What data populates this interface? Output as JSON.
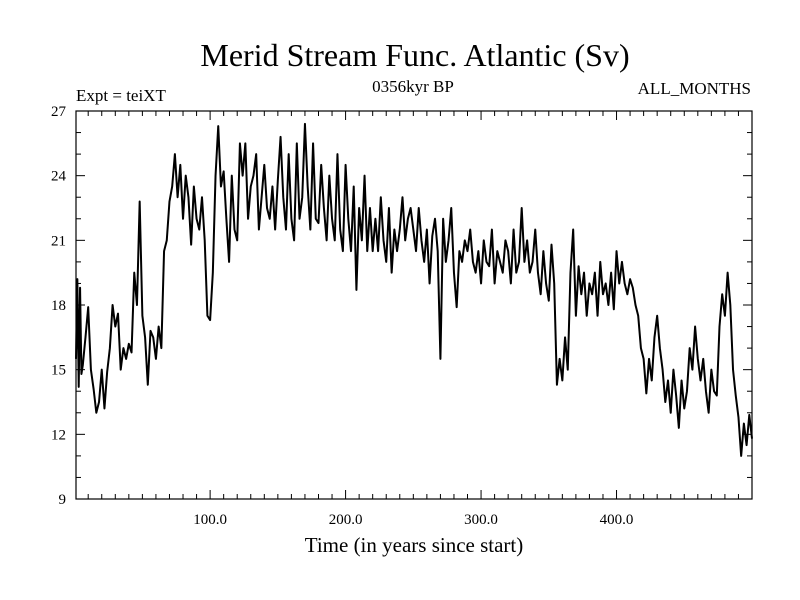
{
  "chart_data": {
    "type": "line",
    "title": "Merid Stream Func. Atlantic (Sv)",
    "subtitle_left": "Expt = teiXT",
    "subtitle_center": "0356kyr BP",
    "subtitle_right": "ALL_MONTHS",
    "xlabel": "Time (in years since start)",
    "ylabel": "",
    "xlim": [
      1,
      500
    ],
    "ylim": [
      9,
      27
    ],
    "x_tick_values": [
      100,
      200,
      300,
      400
    ],
    "x_tick_labels": [
      "100.0",
      "200.0",
      "300.0",
      "400.0"
    ],
    "y_tick_values": [
      9,
      12,
      15,
      18,
      21,
      24,
      27
    ],
    "y_tick_labels": [
      "9",
      "12",
      "15",
      "18",
      "21",
      "24",
      "27"
    ],
    "series": [
      {
        "name": "Merid Stream Func. Atlantic",
        "x": [
          1,
          2,
          3,
          4,
          5,
          6,
          8,
          10,
          12,
          14,
          16,
          18,
          20,
          22,
          24,
          26,
          28,
          30,
          32,
          34,
          36,
          38,
          40,
          42,
          44,
          46,
          48,
          50,
          52,
          54,
          56,
          58,
          60,
          62,
          64,
          66,
          68,
          70,
          72,
          74,
          76,
          78,
          80,
          82,
          84,
          86,
          88,
          90,
          92,
          94,
          96,
          98,
          100,
          102,
          104,
          106,
          108,
          110,
          112,
          114,
          116,
          118,
          120,
          122,
          124,
          126,
          128,
          130,
          132,
          134,
          136,
          138,
          140,
          142,
          144,
          146,
          148,
          150,
          152,
          154,
          156,
          158,
          160,
          162,
          164,
          166,
          168,
          170,
          172,
          174,
          176,
          178,
          180,
          182,
          184,
          186,
          188,
          190,
          192,
          194,
          196,
          198,
          200,
          202,
          204,
          206,
          208,
          210,
          212,
          214,
          216,
          218,
          220,
          222,
          224,
          226,
          228,
          230,
          232,
          234,
          236,
          238,
          240,
          242,
          244,
          246,
          248,
          250,
          252,
          254,
          256,
          258,
          260,
          262,
          264,
          266,
          268,
          270,
          272,
          274,
          276,
          278,
          280,
          282,
          284,
          286,
          288,
          290,
          292,
          294,
          296,
          298,
          300,
          302,
          304,
          306,
          308,
          310,
          312,
          314,
          316,
          318,
          320,
          322,
          324,
          326,
          328,
          330,
          332,
          334,
          336,
          338,
          340,
          342,
          344,
          346,
          348,
          350,
          352,
          354,
          356,
          358,
          360,
          362,
          364,
          366,
          368,
          370,
          372,
          374,
          376,
          378,
          380,
          382,
          384,
          386,
          388,
          390,
          392,
          394,
          396,
          398,
          400,
          402,
          404,
          406,
          408,
          410,
          412,
          414,
          416,
          418,
          420,
          422,
          424,
          426,
          428,
          430,
          432,
          434,
          436,
          438,
          440,
          442,
          444,
          446,
          448,
          450,
          452,
          454,
          456,
          458,
          460,
          462,
          464,
          466,
          468,
          470,
          472,
          474,
          476,
          478,
          480,
          482,
          484,
          486,
          488,
          490,
          492,
          494,
          496,
          498,
          500
        ],
        "values": [
          15.5,
          19.2,
          14.2,
          18.8,
          14.8,
          15.2,
          16.5,
          17.9,
          15.0,
          14.1,
          13.0,
          13.5,
          15.0,
          13.2,
          14.9,
          16.0,
          18.0,
          17.0,
          17.6,
          15.0,
          16.0,
          15.5,
          16.2,
          15.8,
          19.5,
          18.0,
          22.8,
          17.5,
          16.5,
          14.3,
          16.8,
          16.5,
          15.5,
          17.0,
          16.0,
          20.5,
          21.0,
          22.8,
          23.5,
          25.0,
          23.0,
          24.5,
          22.0,
          24.0,
          23.0,
          20.8,
          23.5,
          22.0,
          21.5,
          23.0,
          21.0,
          17.5,
          17.3,
          19.5,
          24.0,
          26.3,
          23.5,
          24.2,
          22.0,
          20.0,
          24.0,
          21.5,
          21.0,
          25.5,
          24.0,
          25.5,
          22.0,
          23.5,
          24.0,
          25.0,
          21.5,
          23.0,
          24.5,
          22.5,
          22.0,
          23.5,
          21.5,
          23.8,
          25.8,
          23.0,
          21.5,
          25.0,
          22.0,
          21.0,
          25.5,
          22.0,
          23.0,
          26.4,
          23.5,
          21.5,
          25.5,
          22.0,
          21.8,
          24.5,
          22.5,
          21.0,
          24.0,
          22.0,
          21.0,
          25.0,
          21.5,
          20.5,
          24.5,
          22.0,
          20.5,
          23.5,
          18.7,
          22.5,
          21.0,
          24.0,
          20.5,
          22.5,
          20.5,
          22.0,
          20.5,
          23.0,
          21.0,
          20.0,
          22.5,
          19.5,
          21.5,
          20.5,
          21.5,
          23.0,
          21.0,
          22.0,
          22.5,
          21.5,
          20.5,
          22.5,
          21.0,
          20.0,
          21.5,
          19.0,
          21.2,
          22.0,
          20.5,
          15.5,
          22.0,
          20.0,
          21.0,
          22.5,
          19.5,
          17.9,
          20.5,
          20.0,
          21.0,
          20.5,
          21.5,
          20.0,
          19.5,
          20.5,
          19.0,
          21.0,
          20.0,
          19.8,
          21.5,
          19.0,
          20.5,
          20.0,
          19.5,
          21.0,
          20.5,
          19.0,
          21.5,
          19.5,
          20.0,
          22.5,
          20.0,
          21.0,
          19.5,
          20.0,
          21.5,
          19.5,
          18.5,
          20.5,
          19.0,
          18.2,
          20.8,
          19.0,
          14.3,
          15.5,
          14.5,
          16.5,
          15.0,
          19.5,
          21.5,
          17.5,
          19.8,
          18.5,
          19.5,
          17.5,
          19.0,
          18.5,
          19.5,
          17.5,
          20.0,
          18.5,
          19.0,
          18.0,
          19.5,
          17.8,
          20.5,
          19.0,
          20.0,
          19.0,
          18.5,
          19.2,
          18.8,
          18.0,
          17.5,
          16.0,
          15.5,
          13.9,
          15.5,
          14.5,
          16.5,
          17.5,
          16.0,
          15.0,
          13.5,
          14.5,
          13.0,
          15.0,
          13.8,
          12.3,
          14.5,
          13.2,
          14.0,
          16.0,
          15.0,
          17.0,
          15.5,
          14.5,
          15.5,
          14.0,
          13.0,
          15.0,
          14.0,
          13.8,
          17.0,
          18.5,
          17.5,
          19.5,
          18.0,
          15.0,
          13.8,
          12.8,
          11.0,
          12.5,
          11.5,
          12.9,
          11.8
        ]
      }
    ]
  }
}
